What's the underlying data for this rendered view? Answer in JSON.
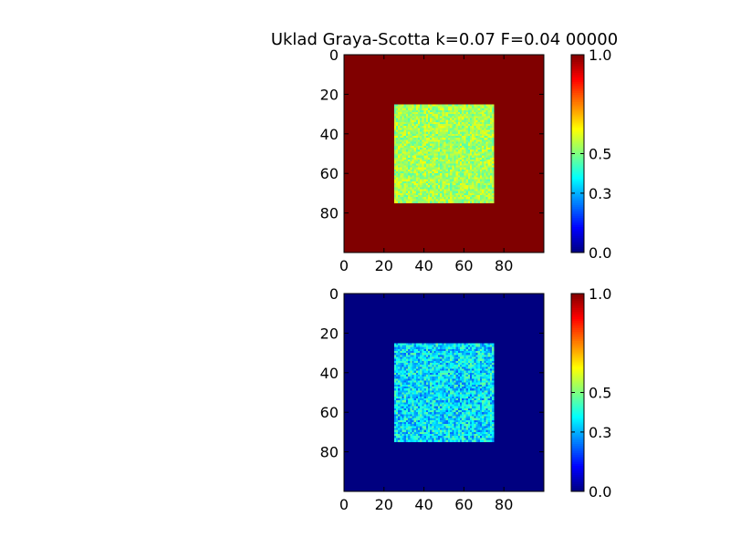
{
  "figure": {
    "title": "Uklad Graya-Scotta k=0.07 F=0.04 00000"
  },
  "chart_data": [
    {
      "type": "heatmap",
      "name": "top-heatmap",
      "grid_size": [
        100,
        100
      ],
      "xlim": [
        0,
        100
      ],
      "ylim": [
        100,
        0
      ],
      "x_ticks": [
        "0",
        "20",
        "40",
        "60",
        "80"
      ],
      "y_ticks": [
        "0",
        "20",
        "40",
        "60",
        "80"
      ],
      "background_value": 1.0,
      "square": {
        "x": [
          25,
          75
        ],
        "y": [
          25,
          75
        ]
      },
      "square_value_range": [
        0.45,
        0.62
      ],
      "colorbar": {
        "range": [
          0.0,
          1.0
        ],
        "ticks": [
          "0.0",
          "0.3",
          "0.5",
          "1.0"
        ],
        "colormap": "jet"
      }
    },
    {
      "type": "heatmap",
      "name": "bottom-heatmap",
      "grid_size": [
        100,
        100
      ],
      "xlim": [
        0,
        100
      ],
      "ylim": [
        100,
        0
      ],
      "x_ticks": [
        "0",
        "20",
        "40",
        "60",
        "80"
      ],
      "y_ticks": [
        "0",
        "20",
        "40",
        "60",
        "80"
      ],
      "background_value": 0.0,
      "square": {
        "x": [
          25,
          75
        ],
        "y": [
          25,
          75
        ]
      },
      "square_value_range": [
        0.22,
        0.48
      ],
      "colorbar": {
        "range": [
          0.0,
          1.0
        ],
        "ticks": [
          "0.0",
          "0.3",
          "0.5",
          "1.0"
        ],
        "colormap": "jet"
      }
    }
  ]
}
